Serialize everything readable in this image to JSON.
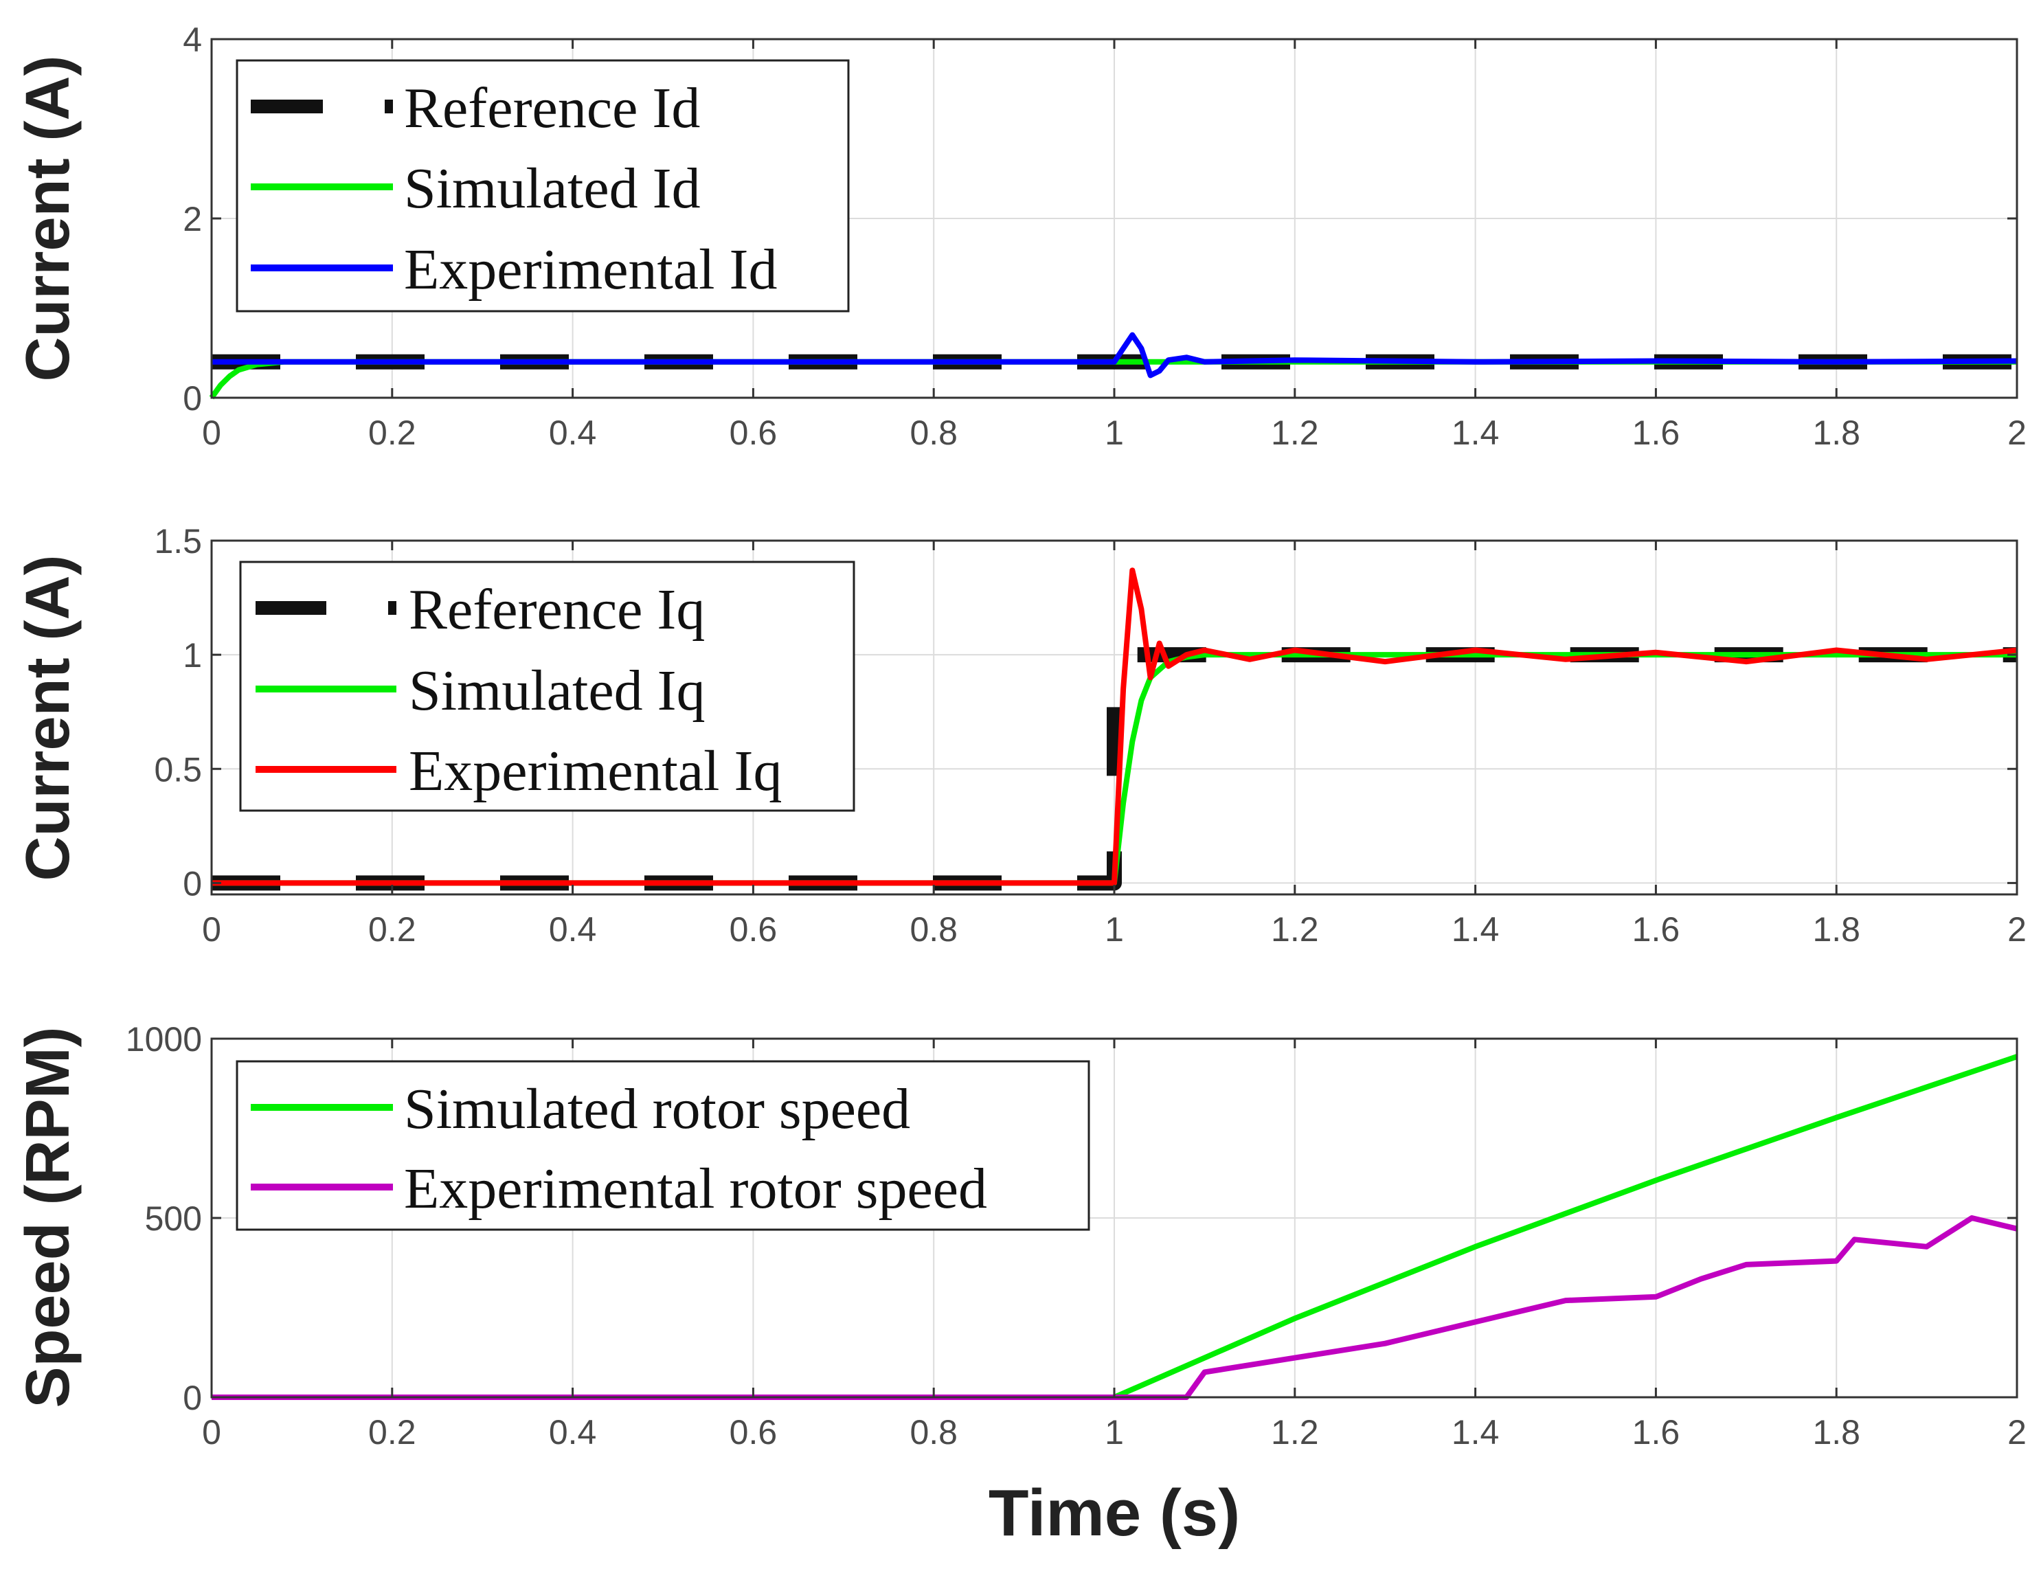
{
  "xlabel": "Time (s)",
  "colors": {
    "reference": "#111111",
    "simulated": "#00ee00",
    "experimental_id": "#0000ff",
    "experimental_iq": "#ff0000",
    "experimental_speed": "#c000c0"
  },
  "chart_data": [
    {
      "type": "line",
      "ylabel": "Current (A)",
      "xlim": [
        0,
        2
      ],
      "ylim": [
        0,
        4
      ],
      "xticks": [
        "0",
        "0.2",
        "0.4",
        "0.6",
        "0.8",
        "1",
        "1.2",
        "1.4",
        "1.6",
        "1.8",
        "2"
      ],
      "yticks": [
        "0",
        "2",
        "4"
      ],
      "legend": "top-left",
      "series": [
        {
          "name": "Reference Id",
          "style": "dashed",
          "color": "#111111",
          "x": [
            0,
            2
          ],
          "y": [
            0.4,
            0.4
          ]
        },
        {
          "name": "Simulated Id",
          "style": "solid",
          "color": "#00ee00",
          "x": [
            0,
            0.01,
            0.02,
            0.03,
            0.05,
            0.08,
            1.0,
            2.0
          ],
          "y": [
            0,
            0.14,
            0.24,
            0.31,
            0.37,
            0.4,
            0.4,
            0.4
          ]
        },
        {
          "name": "Experimental Id",
          "style": "solid",
          "color": "#0000ff",
          "x": [
            0,
            0.02,
            0.04,
            1.0,
            1.01,
            1.02,
            1.03,
            1.04,
            1.05,
            1.06,
            1.08,
            1.1,
            1.2,
            1.4,
            1.6,
            1.8,
            2.0
          ],
          "y": [
            0.4,
            0.4,
            0.4,
            0.4,
            0.55,
            0.7,
            0.55,
            0.25,
            0.3,
            0.42,
            0.45,
            0.4,
            0.42,
            0.4,
            0.41,
            0.4,
            0.41
          ]
        }
      ]
    },
    {
      "type": "line",
      "ylabel": "Current (A)",
      "xlim": [
        0,
        2
      ],
      "ylim": [
        -0.05,
        1.5
      ],
      "xticks": [
        "0",
        "0.2",
        "0.4",
        "0.6",
        "0.8",
        "1",
        "1.2",
        "1.4",
        "1.6",
        "1.8",
        "2"
      ],
      "yticks": [
        "0",
        "0.5",
        "1",
        "1.5"
      ],
      "legend": "top-left",
      "series": [
        {
          "name": "Reference Iq",
          "style": "dashed",
          "color": "#111111",
          "x": [
            0,
            1.0,
            1.0,
            1.03,
            2.0
          ],
          "y": [
            0,
            0,
            1.0,
            1.0,
            1.0
          ]
        },
        {
          "name": "Simulated Iq",
          "style": "solid",
          "color": "#00ee00",
          "x": [
            0,
            1.0,
            1.01,
            1.02,
            1.03,
            1.04,
            1.06,
            1.08,
            1.1,
            2.0
          ],
          "y": [
            0,
            0,
            0.35,
            0.62,
            0.8,
            0.9,
            0.97,
            0.99,
            1.0,
            1.0
          ]
        },
        {
          "name": "Experimental Iq",
          "style": "solid",
          "color": "#ff0000",
          "x": [
            0,
            1.0,
            1.01,
            1.02,
            1.03,
            1.04,
            1.05,
            1.06,
            1.08,
            1.1,
            1.15,
            1.2,
            1.3,
            1.4,
            1.5,
            1.6,
            1.7,
            1.8,
            1.9,
            2.0
          ],
          "y": [
            0,
            0,
            0.85,
            1.37,
            1.2,
            0.9,
            1.05,
            0.95,
            1.0,
            1.02,
            0.98,
            1.02,
            0.97,
            1.02,
            0.98,
            1.01,
            0.97,
            1.02,
            0.98,
            1.02
          ]
        }
      ]
    },
    {
      "type": "line",
      "ylabel": "Speed (RPM)",
      "xlim": [
        0,
        2
      ],
      "ylim": [
        0,
        1000
      ],
      "xticks": [
        "0",
        "0.2",
        "0.4",
        "0.6",
        "0.8",
        "1",
        "1.2",
        "1.4",
        "1.6",
        "1.8",
        "2"
      ],
      "yticks": [
        "0",
        "500",
        "1000"
      ],
      "legend": "top-left",
      "series": [
        {
          "name": "Simulated rotor speed",
          "style": "solid",
          "color": "#00ee00",
          "x": [
            0,
            1.0,
            1.2,
            1.4,
            1.6,
            1.8,
            2.0
          ],
          "y": [
            0,
            0,
            220,
            420,
            605,
            780,
            950
          ]
        },
        {
          "name": "Experimental rotor speed",
          "style": "solid",
          "color": "#c000c0",
          "x": [
            0,
            1.08,
            1.1,
            1.2,
            1.3,
            1.4,
            1.5,
            1.6,
            1.65,
            1.7,
            1.8,
            1.82,
            1.9,
            1.95,
            2.0
          ],
          "y": [
            0,
            0,
            70,
            110,
            150,
            210,
            270,
            280,
            330,
            370,
            380,
            440,
            420,
            500,
            470
          ]
        }
      ]
    }
  ]
}
